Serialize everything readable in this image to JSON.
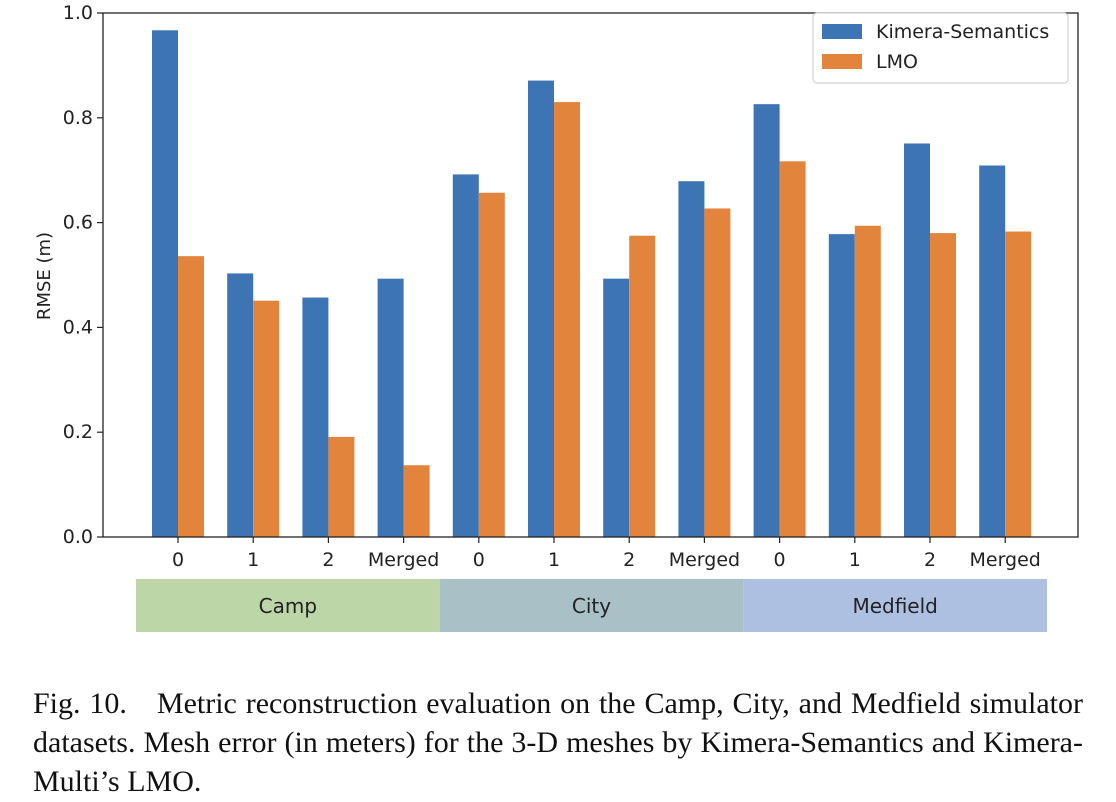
{
  "chart_data": {
    "type": "bar",
    "categories": [
      "0",
      "1",
      "2",
      "Merged",
      "0",
      "1",
      "2",
      "Merged",
      "0",
      "1",
      "2",
      "Merged"
    ],
    "groups": [
      {
        "label": "Camp",
        "color": "#bcd6a8"
      },
      {
        "label": "City",
        "color": "#a9c1c6"
      },
      {
        "label": "Medfield",
        "color": "#aec0e2"
      }
    ],
    "series": [
      {
        "name": "Kimera-Semantics",
        "color": "#3d74b3",
        "values": [
          0.967,
          0.503,
          0.457,
          0.493,
          0.692,
          0.871,
          0.493,
          0.679,
          0.826,
          0.578,
          0.751,
          0.709
        ]
      },
      {
        "name": "LMO",
        "color": "#e3843d",
        "values": [
          0.536,
          0.451,
          0.191,
          0.137,
          0.657,
          0.83,
          0.575,
          0.627,
          0.717,
          0.594,
          0.58,
          0.583
        ]
      }
    ],
    "ylabel": "RMSE (m)",
    "ylim": [
      0,
      1.0
    ],
    "yticks": [
      "0.0",
      "0.2",
      "0.4",
      "0.6",
      "0.8",
      "1.0"
    ],
    "grid": false,
    "legend_position": "top-right"
  },
  "caption": {
    "label": "Fig. 10.",
    "text": "Metric reconstruction evaluation on the Camp, City, and Medfield simulator datasets. Mesh error (in meters) for the 3-D meshes by Kimera-Semantics and Kimera-Multi’s LMO."
  }
}
